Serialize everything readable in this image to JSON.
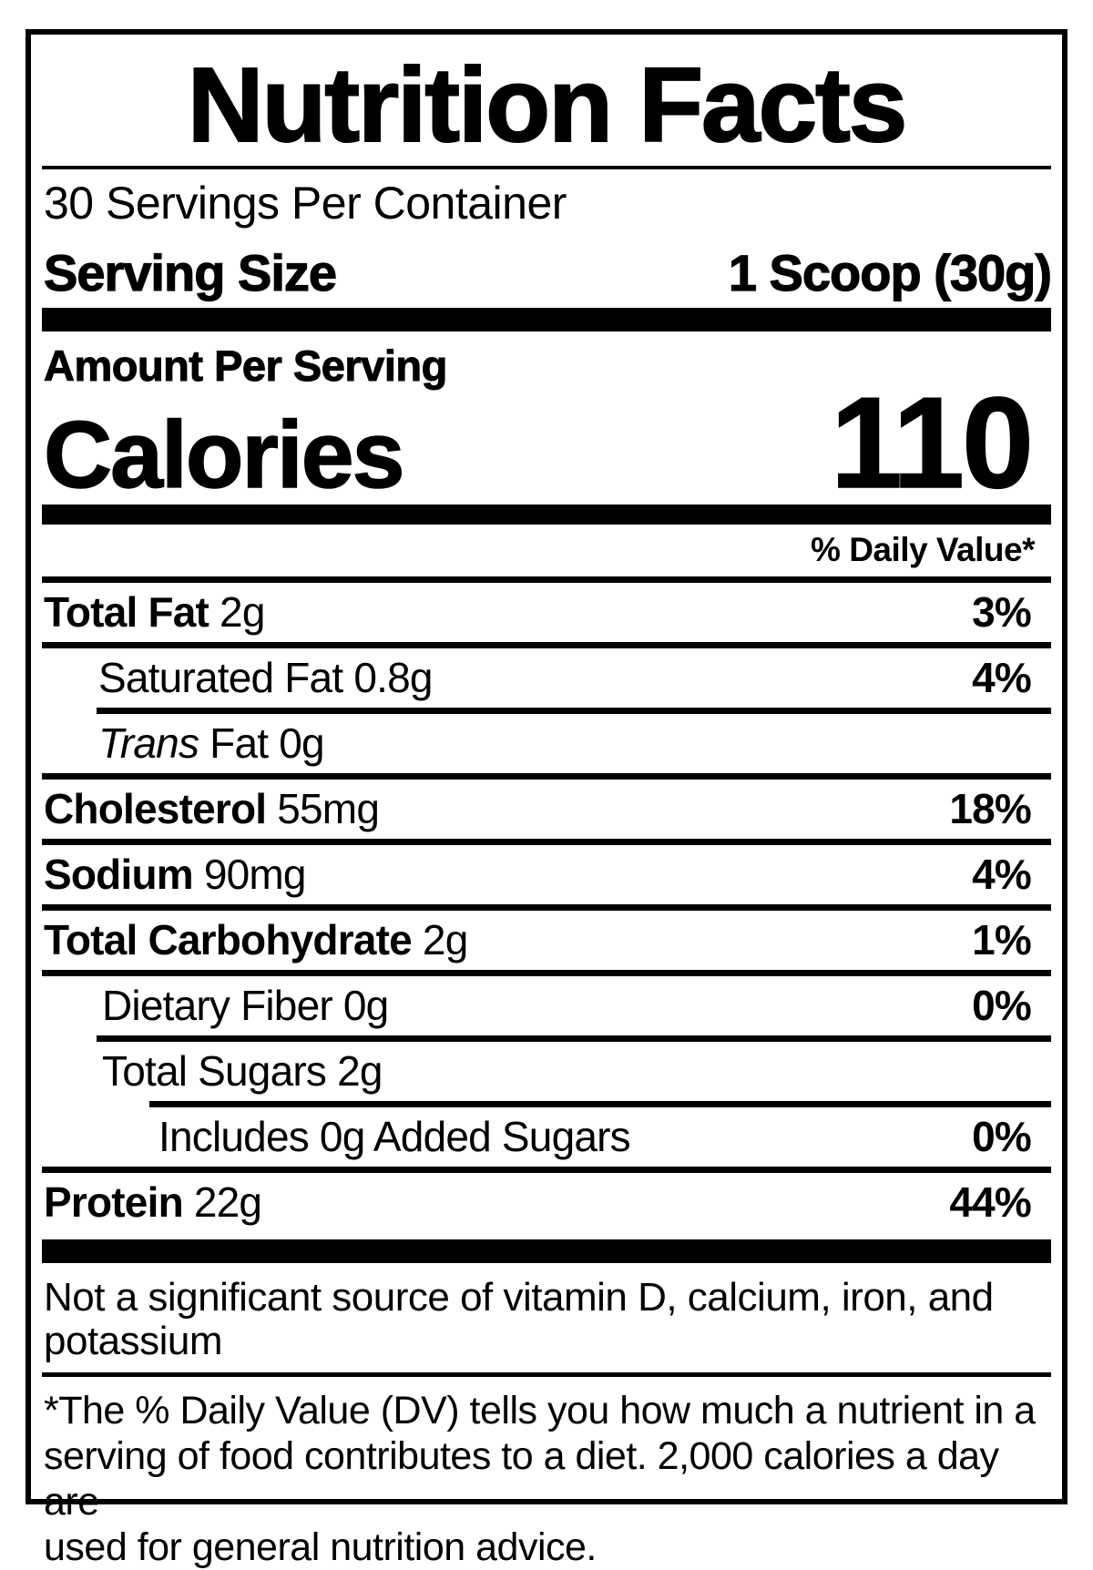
{
  "colors": {
    "text": "#000000",
    "background": "#ffffff"
  },
  "label": {
    "title": "Nutrition Facts",
    "servings_per_container": "30 Servings Per Container",
    "serving_size": {
      "label": "Serving Size",
      "value": "1 Scoop (30g)"
    },
    "amount_per_serving": "Amount Per Serving",
    "calories": {
      "label": "Calories",
      "value": "110"
    },
    "daily_value_header": "% Daily Value*",
    "nutrients": [
      {
        "name": "Total Fat",
        "amount": "2g",
        "dv": "3%"
      },
      {
        "name": "Saturated Fat",
        "amount": "0.8g",
        "dv": "4%"
      },
      {
        "name": "Trans",
        "amount": "Fat 0g",
        "dv": ""
      },
      {
        "name": "Cholesterol",
        "amount": "55mg",
        "dv": "18%"
      },
      {
        "name": "Sodium",
        "amount": "90mg",
        "dv": "4%"
      },
      {
        "name": "Total Carbohydrate",
        "amount": "2g",
        "dv": "1%"
      },
      {
        "name": "Dietary Fiber",
        "amount": "0g",
        "dv": "0%"
      },
      {
        "name": "Total Sugars",
        "amount": "2g",
        "dv": ""
      },
      {
        "name": "Includes 0g Added Sugars",
        "amount": "",
        "dv": "0%"
      },
      {
        "name": "Protein",
        "amount": "22g",
        "dv": "44%"
      }
    ],
    "not_significant_lines": [
      "Not a significant source of vitamin D, calcium, iron, and",
      "potassium"
    ],
    "footnote_lines": [
      "*The % Daily Value (DV) tells you how much a nutrient in a",
      "serving of food contributes to a diet. 2,000 calories a day are",
      "used for general nutrition advice."
    ]
  }
}
